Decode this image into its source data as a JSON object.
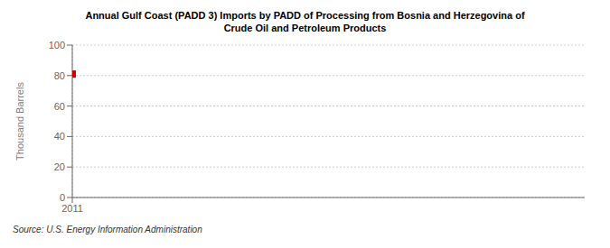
{
  "chart_data": {
    "type": "scatter",
    "title": "Annual Gulf Coast (PADD 3) Imports by PADD of Processing from Bosnia and Herzegovina of\nCrude Oil and Petroleum Products",
    "ylabel": "Thousand Barrels",
    "source": "Source: U.S. Energy Information Administration",
    "x": [
      2011
    ],
    "values": [
      81
    ],
    "color": "#cc0000",
    "marker": "square",
    "xlim": [
      2011,
      2012.5
    ],
    "xticks": [
      2011
    ],
    "ylim": [
      0,
      100
    ],
    "yticks": [
      0,
      20,
      40,
      60,
      80,
      100
    ],
    "grid": true
  }
}
